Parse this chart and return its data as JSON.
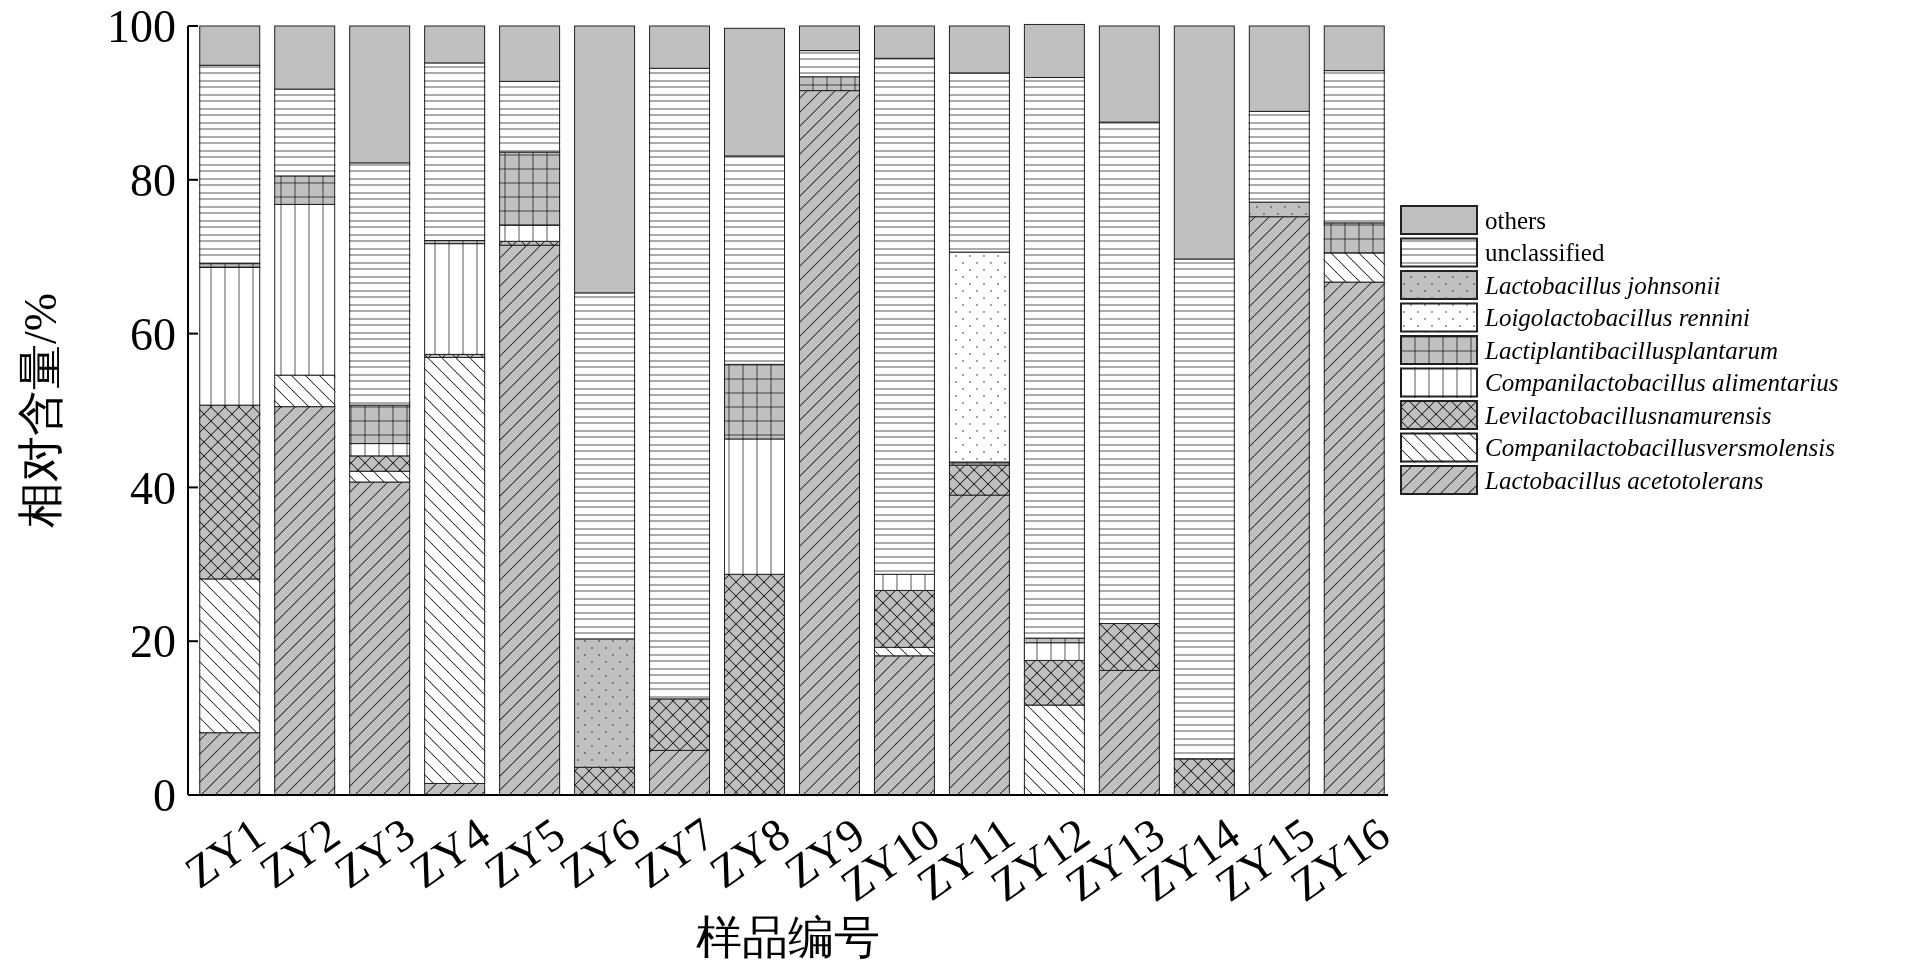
{
  "chart_data": {
    "type": "bar",
    "stacked": true,
    "xlabel": "样品编号",
    "ylabel": "相对含量/%",
    "ylim": [
      0,
      100
    ],
    "yticks": [
      0,
      20,
      40,
      60,
      80,
      100
    ],
    "grid": false,
    "legend": "right",
    "categories": [
      "ZY1",
      "ZY2",
      "ZY3",
      "ZY4",
      "ZY5",
      "ZY6",
      "ZY7",
      "ZY8",
      "ZY9",
      "ZY10",
      "ZY11",
      "ZY12",
      "ZY13",
      "ZY14",
      "ZY15",
      "ZY16"
    ],
    "series": [
      {
        "name": "Lactobacillus acetotolerans",
        "color": "#c0c0c0",
        "values": [
          8.1,
          50.5,
          40.7,
          1.5,
          71.5,
          0,
          5.8,
          0,
          91.6,
          18.1,
          39.0,
          0,
          16.2,
          0,
          75.2,
          66.7
        ]
      },
      {
        "name": "Companilactobacillusversmolensis",
        "color": "#ffffff",
        "values": [
          20.0,
          4.1,
          1.4,
          55.4,
          0,
          0,
          0,
          0,
          0,
          1.1,
          0,
          11.7,
          0,
          0,
          0,
          3.8
        ]
      },
      {
        "name": "Levilactobacillusnamurensis",
        "color": "#c0c0c0",
        "values": [
          22.6,
          0,
          2.0,
          0.4,
          0.5,
          3.6,
          6.7,
          28.7,
          0,
          7.4,
          3.9,
          5.8,
          6.1,
          4.7,
          0,
          0
        ]
      },
      {
        "name": "Companilactobacillus alimentarius",
        "color": "#ffffff",
        "values": [
          17.9,
          22.2,
          1.6,
          14.4,
          2.1,
          0,
          0,
          17.6,
          0,
          2.1,
          0,
          2.3,
          0,
          0,
          0,
          0
        ]
      },
      {
        "name": "Lactiplantibacillusplantarum",
        "color": "#c0c0c0",
        "values": [
          0.5,
          3.7,
          5.0,
          0.4,
          9.5,
          0,
          0,
          9.7,
          1.8,
          0,
          0.4,
          0.6,
          0,
          0,
          0,
          3.9
        ]
      },
      {
        "name": "Loigolactobacillus rennini",
        "color": "#ffffff",
        "values": [
          0,
          0,
          0,
          0,
          0,
          0,
          0,
          0,
          0,
          0,
          27.3,
          0,
          0,
          0,
          0,
          0
        ]
      },
      {
        "name": "Lactobacillus johnsonii",
        "color": "#c0c0c0",
        "values": [
          0,
          0,
          0,
          0,
          0,
          16.7,
          0,
          0,
          0,
          0,
          0,
          0,
          0,
          0,
          1.9,
          0
        ]
      },
      {
        "name": "unclassified",
        "color": "#ffffff",
        "values": [
          25.8,
          11.3,
          31.5,
          23.1,
          9.2,
          45.0,
          82.0,
          27.1,
          3.4,
          67.1,
          23.3,
          72.9,
          65.2,
          65.0,
          11.8,
          19.8
        ]
      },
      {
        "name": "others",
        "color": "#c0c0c0",
        "values": [
          5.1,
          8.2,
          17.8,
          4.8,
          7.2,
          34.7,
          5.5,
          16.6,
          3.2,
          4.2,
          6.1,
          6.9,
          12.5,
          30.3,
          11.1,
          5.8
        ]
      }
    ]
  }
}
